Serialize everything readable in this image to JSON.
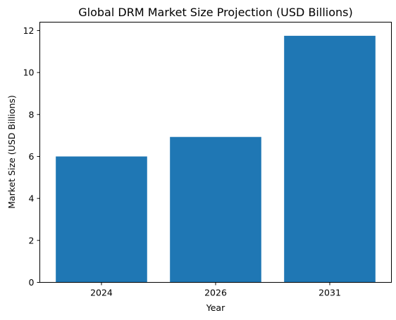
{
  "chart_data": {
    "type": "bar",
    "title": "Global DRM Market Size Projection (USD Billions)",
    "xlabel": "Year",
    "ylabel": "Market Size (USD Billions)",
    "categories": [
      "2024",
      "2026",
      "2031"
    ],
    "values": [
      6.0,
      6.93,
      11.75
    ],
    "ylim": [
      0,
      12.4
    ],
    "yticks": [
      0,
      2,
      4,
      6,
      8,
      10,
      12
    ],
    "bar_color": "#1f77b4",
    "grid": false
  }
}
